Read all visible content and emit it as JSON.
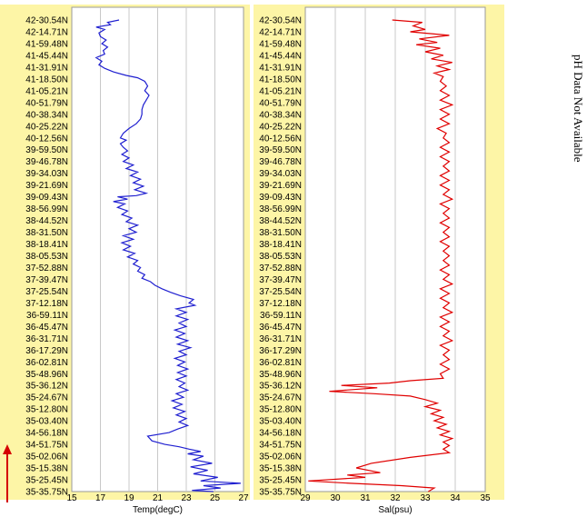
{
  "note": "pH Data Not Available",
  "colors": {
    "panel": "#fdf5a6",
    "plot": "#ffffff",
    "grid": "#c8c8c8",
    "temp": "#1f1fd0",
    "sal": "#e00000",
    "arrow": "#d40000"
  },
  "chart_data": [
    {
      "type": "line",
      "xlabel": "Temp(degC)",
      "x_ticks": [
        "15",
        "17",
        "19",
        "21",
        "23",
        "25",
        "27"
      ],
      "xlim": [
        15,
        27
      ],
      "grid": true,
      "y_tick_labels": [
        "42-30.54N",
        "42-14.71N",
        "41-59.48N",
        "41-45.44N",
        "41-31.91N",
        "41-18.50N",
        "41-05.21N",
        "40-51.79N",
        "40-38.34N",
        "40-25.22N",
        "40-12.56N",
        "39-59.50N",
        "39-46.78N",
        "39-34.03N",
        "39-21.69N",
        "39-09.43N",
        "38-56.99N",
        "38-44.52N",
        "38-31.50N",
        "38-18.41N",
        "38-05.53N",
        "37-52.88N",
        "37-39.47N",
        "37-25.54N",
        "37-12.18N",
        "36-59.11N",
        "36-45.47N",
        "36-31.71N",
        "36-17.29N",
        "36-02.81N",
        "35-48.96N",
        "35-36.12N",
        "35-24.67N",
        "35-12.80N",
        "35-03.40N",
        "34-56.18N",
        "34-51.75N",
        "35-02.06N",
        "35-15.38N",
        "35-25.45N",
        "35-35.75N"
      ],
      "series": [
        {
          "points": [
            [
              18.3,
              0
            ],
            [
              17.5,
              0.2
            ],
            [
              17.7,
              0.4
            ],
            [
              16.7,
              0.6
            ],
            [
              17.3,
              0.8
            ],
            [
              16.9,
              1.1
            ],
            [
              17.0,
              1.4
            ],
            [
              17.4,
              1.7
            ],
            [
              17.1,
              2.0
            ],
            [
              17.5,
              2.3
            ],
            [
              17.2,
              2.6
            ],
            [
              17.3,
              2.9
            ],
            [
              16.7,
              3.2
            ],
            [
              17.1,
              3.5
            ],
            [
              16.9,
              3.8
            ],
            [
              17.3,
              4.1
            ],
            [
              17.9,
              4.4
            ],
            [
              18.8,
              4.7
            ],
            [
              19.6,
              4.9
            ],
            [
              20.1,
              5.2
            ],
            [
              20.3,
              5.6
            ],
            [
              20.1,
              6.0
            ],
            [
              20.4,
              6.4
            ],
            [
              20.2,
              6.8
            ],
            [
              20.0,
              7.2
            ],
            [
              19.9,
              7.6
            ],
            [
              19.9,
              8.0
            ],
            [
              19.8,
              8.4
            ],
            [
              19.5,
              8.8
            ],
            [
              19.0,
              9.2
            ],
            [
              18.6,
              9.6
            ],
            [
              18.4,
              10.0
            ],
            [
              18.8,
              10.2
            ],
            [
              18.4,
              10.5
            ],
            [
              18.6,
              10.8
            ],
            [
              18.9,
              11.1
            ],
            [
              18.5,
              11.4
            ],
            [
              19.0,
              11.7
            ],
            [
              18.6,
              12.0
            ],
            [
              19.3,
              12.3
            ],
            [
              18.8,
              12.6
            ],
            [
              19.6,
              12.9
            ],
            [
              19.1,
              13.2
            ],
            [
              19.8,
              13.5
            ],
            [
              19.3,
              13.8
            ],
            [
              20.0,
              14.1
            ],
            [
              19.4,
              14.4
            ],
            [
              20.2,
              14.7
            ],
            [
              19.5,
              14.9
            ],
            [
              18.2,
              15.0
            ],
            [
              18.9,
              15.2
            ],
            [
              17.9,
              15.4
            ],
            [
              18.7,
              15.6
            ],
            [
              18.2,
              15.9
            ],
            [
              18.9,
              16.2
            ],
            [
              18.5,
              16.5
            ],
            [
              19.2,
              16.8
            ],
            [
              18.8,
              17.1
            ],
            [
              19.6,
              17.4
            ],
            [
              19.0,
              17.7
            ],
            [
              19.5,
              18.0
            ],
            [
              18.6,
              18.3
            ],
            [
              19.3,
              18.6
            ],
            [
              18.5,
              18.9
            ],
            [
              19.1,
              19.2
            ],
            [
              18.6,
              19.5
            ],
            [
              19.4,
              19.8
            ],
            [
              18.9,
              20.1
            ],
            [
              19.6,
              20.4
            ],
            [
              19.3,
              20.7
            ],
            [
              19.8,
              21.0
            ],
            [
              19.6,
              21.3
            ],
            [
              20.1,
              21.6
            ],
            [
              19.9,
              21.9
            ],
            [
              20.5,
              22.2
            ],
            [
              20.8,
              22.5
            ],
            [
              21.3,
              22.8
            ],
            [
              21.9,
              23.1
            ],
            [
              22.6,
              23.4
            ],
            [
              23.5,
              23.7
            ],
            [
              23.2,
              24.0
            ],
            [
              23.6,
              24.2
            ],
            [
              22.3,
              24.5
            ],
            [
              23.0,
              24.8
            ],
            [
              22.3,
              25.1
            ],
            [
              23.1,
              25.4
            ],
            [
              22.5,
              25.7
            ],
            [
              23.0,
              26.0
            ],
            [
              22.2,
              26.3
            ],
            [
              22.9,
              26.6
            ],
            [
              22.3,
              26.9
            ],
            [
              23.1,
              27.2
            ],
            [
              22.4,
              27.5
            ],
            [
              23.3,
              27.8
            ],
            [
              22.5,
              28.1
            ],
            [
              23.0,
              28.4
            ],
            [
              22.2,
              28.7
            ],
            [
              22.9,
              29.0
            ],
            [
              22.4,
              29.3
            ],
            [
              23.1,
              29.6
            ],
            [
              22.4,
              29.9
            ],
            [
              23.0,
              30.2
            ],
            [
              22.3,
              30.5
            ],
            [
              22.9,
              30.8
            ],
            [
              22.5,
              31.1
            ],
            [
              23.1,
              31.4
            ],
            [
              22.3,
              31.7
            ],
            [
              22.8,
              32.0
            ],
            [
              22.0,
              32.3
            ],
            [
              22.7,
              32.6
            ],
            [
              22.1,
              32.9
            ],
            [
              22.9,
              33.2
            ],
            [
              22.3,
              33.5
            ],
            [
              23.0,
              33.8
            ],
            [
              22.5,
              34.1
            ],
            [
              23.1,
              34.4
            ],
            [
              22.4,
              34.7
            ],
            [
              21.8,
              35.0
            ],
            [
              20.3,
              35.3
            ],
            [
              20.6,
              35.7
            ],
            [
              21.5,
              36.0
            ],
            [
              22.5,
              36.2
            ],
            [
              23.2,
              36.4
            ],
            [
              24.0,
              36.6
            ],
            [
              23.1,
              36.8
            ],
            [
              24.2,
              37.0
            ],
            [
              23.5,
              37.3
            ],
            [
              24.8,
              37.6
            ],
            [
              23.3,
              37.9
            ],
            [
              24.5,
              38.2
            ],
            [
              23.5,
              38.5
            ],
            [
              25.2,
              38.8
            ],
            [
              24.0,
              39.1
            ],
            [
              26.8,
              39.3
            ],
            [
              24.2,
              39.5
            ],
            [
              25.4,
              39.7
            ],
            [
              23.4,
              39.9
            ],
            [
              24.9,
              40.0
            ]
          ]
        }
      ]
    },
    {
      "type": "line",
      "xlabel": "Sal(psu)",
      "x_ticks": [
        "29",
        "30",
        "31",
        "32",
        "33",
        "34",
        "35"
      ],
      "xlim": [
        29,
        35
      ],
      "grid": true,
      "y_tick_labels": [
        "42-30.54N",
        "42-14.71N",
        "41-59.48N",
        "41-45.44N",
        "41-31.91N",
        "41-18.50N",
        "41-05.21N",
        "40-51.79N",
        "40-38.34N",
        "40-25.22N",
        "40-12.56N",
        "39-59.50N",
        "39-46.78N",
        "39-34.03N",
        "39-21.69N",
        "39-09.43N",
        "38-56.99N",
        "38-44.52N",
        "38-31.50N",
        "38-18.41N",
        "38-05.53N",
        "37-52.88N",
        "37-39.47N",
        "37-25.54N",
        "37-12.18N",
        "36-59.11N",
        "36-45.47N",
        "36-31.71N",
        "36-17.29N",
        "36-02.81N",
        "35-48.96N",
        "35-36.12N",
        "35-24.67N",
        "35-12.80N",
        "35-03.40N",
        "34-56.18N",
        "34-51.75N",
        "35-02.06N",
        "35-15.38N",
        "35-25.45N",
        "35-35.75N"
      ],
      "series": [
        {
          "points": [
            [
              31.9,
              0
            ],
            [
              32.9,
              0.2
            ],
            [
              32.6,
              0.5
            ],
            [
              33.0,
              0.8
            ],
            [
              32.5,
              1.0
            ],
            [
              33.8,
              1.3
            ],
            [
              32.8,
              1.6
            ],
            [
              33.4,
              1.9
            ],
            [
              32.7,
              2.1
            ],
            [
              33.5,
              2.4
            ],
            [
              33.0,
              2.7
            ],
            [
              33.6,
              3.0
            ],
            [
              33.2,
              3.3
            ],
            [
              33.9,
              3.6
            ],
            [
              33.4,
              3.9
            ],
            [
              33.8,
              4.2
            ],
            [
              33.3,
              4.5
            ],
            [
              33.6,
              4.8
            ],
            [
              33.5,
              5.2
            ],
            [
              33.7,
              5.6
            ],
            [
              33.5,
              6.0
            ],
            [
              33.8,
              6.4
            ],
            [
              33.5,
              6.8
            ],
            [
              33.9,
              7.2
            ],
            [
              33.5,
              7.6
            ],
            [
              33.8,
              8.0
            ],
            [
              33.5,
              8.4
            ],
            [
              33.8,
              8.8
            ],
            [
              33.4,
              9.2
            ],
            [
              33.7,
              9.6
            ],
            [
              33.6,
              10.0
            ],
            [
              33.8,
              10.4
            ],
            [
              33.5,
              10.8
            ],
            [
              33.8,
              11.2
            ],
            [
              33.5,
              11.6
            ],
            [
              33.8,
              12.0
            ],
            [
              33.6,
              12.4
            ],
            [
              33.8,
              12.8
            ],
            [
              33.5,
              13.2
            ],
            [
              33.8,
              13.6
            ],
            [
              33.5,
              14.0
            ],
            [
              33.8,
              14.4
            ],
            [
              33.6,
              14.8
            ],
            [
              33.9,
              15.2
            ],
            [
              33.5,
              15.6
            ],
            [
              33.8,
              16.0
            ],
            [
              33.6,
              16.4
            ],
            [
              33.8,
              16.8
            ],
            [
              33.5,
              17.2
            ],
            [
              33.8,
              17.6
            ],
            [
              33.6,
              18.0
            ],
            [
              33.8,
              18.4
            ],
            [
              33.5,
              18.8
            ],
            [
              33.8,
              19.2
            ],
            [
              33.6,
              19.6
            ],
            [
              33.8,
              20.0
            ],
            [
              33.6,
              20.4
            ],
            [
              33.8,
              20.8
            ],
            [
              33.5,
              21.2
            ],
            [
              33.8,
              21.6
            ],
            [
              33.6,
              22.0
            ],
            [
              33.9,
              22.4
            ],
            [
              33.5,
              22.8
            ],
            [
              33.8,
              23.2
            ],
            [
              33.5,
              23.6
            ],
            [
              33.8,
              24.0
            ],
            [
              33.6,
              24.4
            ],
            [
              33.9,
              24.8
            ],
            [
              33.5,
              25.2
            ],
            [
              33.8,
              25.6
            ],
            [
              33.5,
              26.0
            ],
            [
              33.8,
              26.4
            ],
            [
              33.6,
              26.8
            ],
            [
              33.9,
              27.2
            ],
            [
              33.5,
              27.6
            ],
            [
              33.8,
              28.0
            ],
            [
              33.6,
              28.4
            ],
            [
              33.8,
              28.8
            ],
            [
              33.5,
              29.2
            ],
            [
              33.8,
              29.6
            ],
            [
              33.5,
              30.0
            ],
            [
              33.6,
              30.4
            ],
            [
              32.5,
              30.6
            ],
            [
              31.8,
              30.8
            ],
            [
              30.2,
              31.0
            ],
            [
              31.4,
              31.2
            ],
            [
              29.8,
              31.5
            ],
            [
              31.3,
              31.7
            ],
            [
              32.5,
              31.9
            ],
            [
              33.0,
              32.2
            ],
            [
              33.4,
              32.5
            ],
            [
              33.0,
              32.8
            ],
            [
              33.5,
              33.1
            ],
            [
              33.2,
              33.4
            ],
            [
              33.6,
              33.7
            ],
            [
              33.3,
              34.0
            ],
            [
              33.7,
              34.3
            ],
            [
              33.4,
              34.6
            ],
            [
              33.8,
              34.9
            ],
            [
              33.5,
              35.2
            ],
            [
              33.9,
              35.5
            ],
            [
              33.6,
              35.8
            ],
            [
              33.8,
              36.1
            ],
            [
              33.6,
              36.4
            ],
            [
              33.8,
              36.7
            ],
            [
              32.5,
              37.1
            ],
            [
              31.2,
              37.6
            ],
            [
              30.7,
              38.0
            ],
            [
              31.5,
              38.4
            ],
            [
              30.4,
              38.6
            ],
            [
              31.0,
              38.8
            ],
            [
              29.1,
              39.1
            ],
            [
              30.5,
              39.3
            ],
            [
              32.2,
              39.5
            ],
            [
              33.3,
              39.7
            ],
            [
              33.1,
              40.0
            ]
          ]
        }
      ]
    }
  ]
}
